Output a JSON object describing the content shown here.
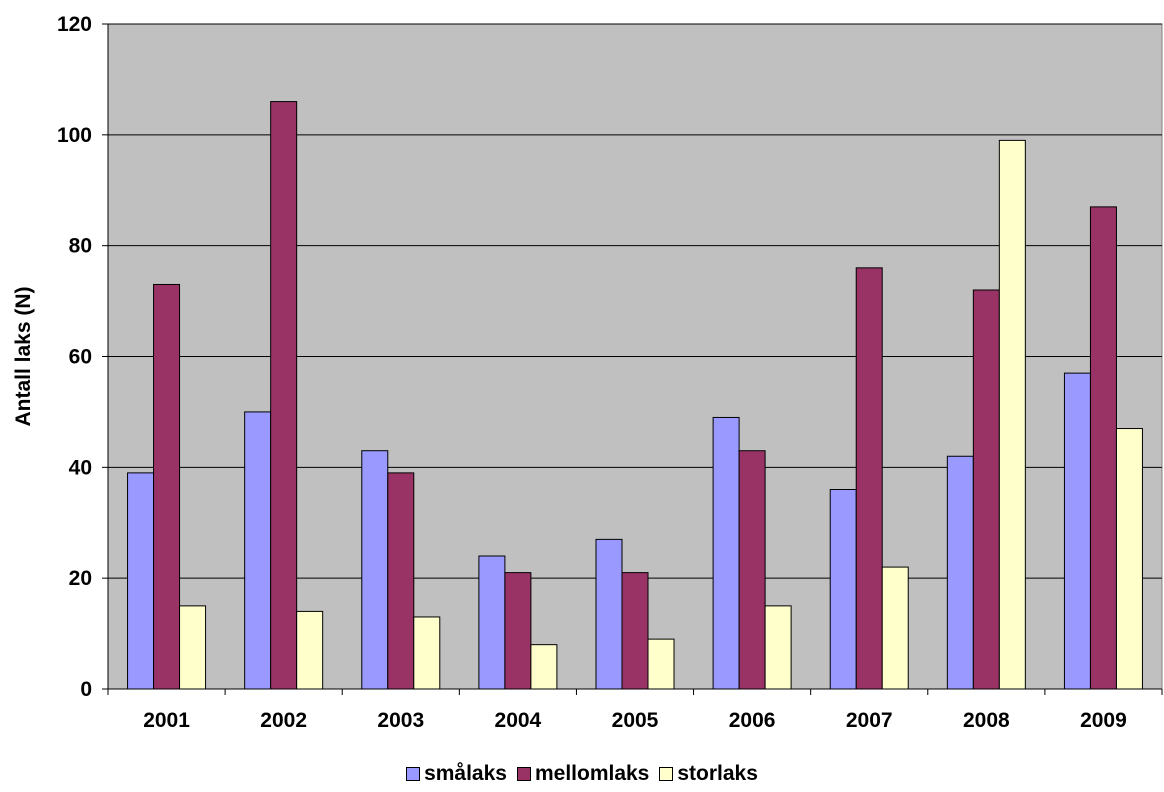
{
  "chart_data": {
    "type": "bar",
    "title": "",
    "xlabel": "",
    "ylabel": "Antall laks (N)",
    "ylim": [
      0,
      120
    ],
    "yticks": [
      0,
      20,
      40,
      60,
      80,
      100,
      120
    ],
    "grid": true,
    "plot_background": "#C0C0C0",
    "legend_position": "bottom",
    "categories": [
      "2001",
      "2002",
      "2003",
      "2004",
      "2005",
      "2006",
      "2007",
      "2008",
      "2009"
    ],
    "series": [
      {
        "name": "smålaks",
        "color": "#9999FF",
        "values": [
          39,
          50,
          43,
          24,
          27,
          49,
          36,
          42,
          57
        ]
      },
      {
        "name": "mellomlaks",
        "color": "#993366",
        "values": [
          73,
          106,
          39,
          21,
          21,
          43,
          76,
          72,
          87
        ]
      },
      {
        "name": "storlaks",
        "color": "#FFFFCC",
        "values": [
          15,
          14,
          13,
          8,
          9,
          15,
          22,
          99,
          47
        ]
      }
    ]
  }
}
